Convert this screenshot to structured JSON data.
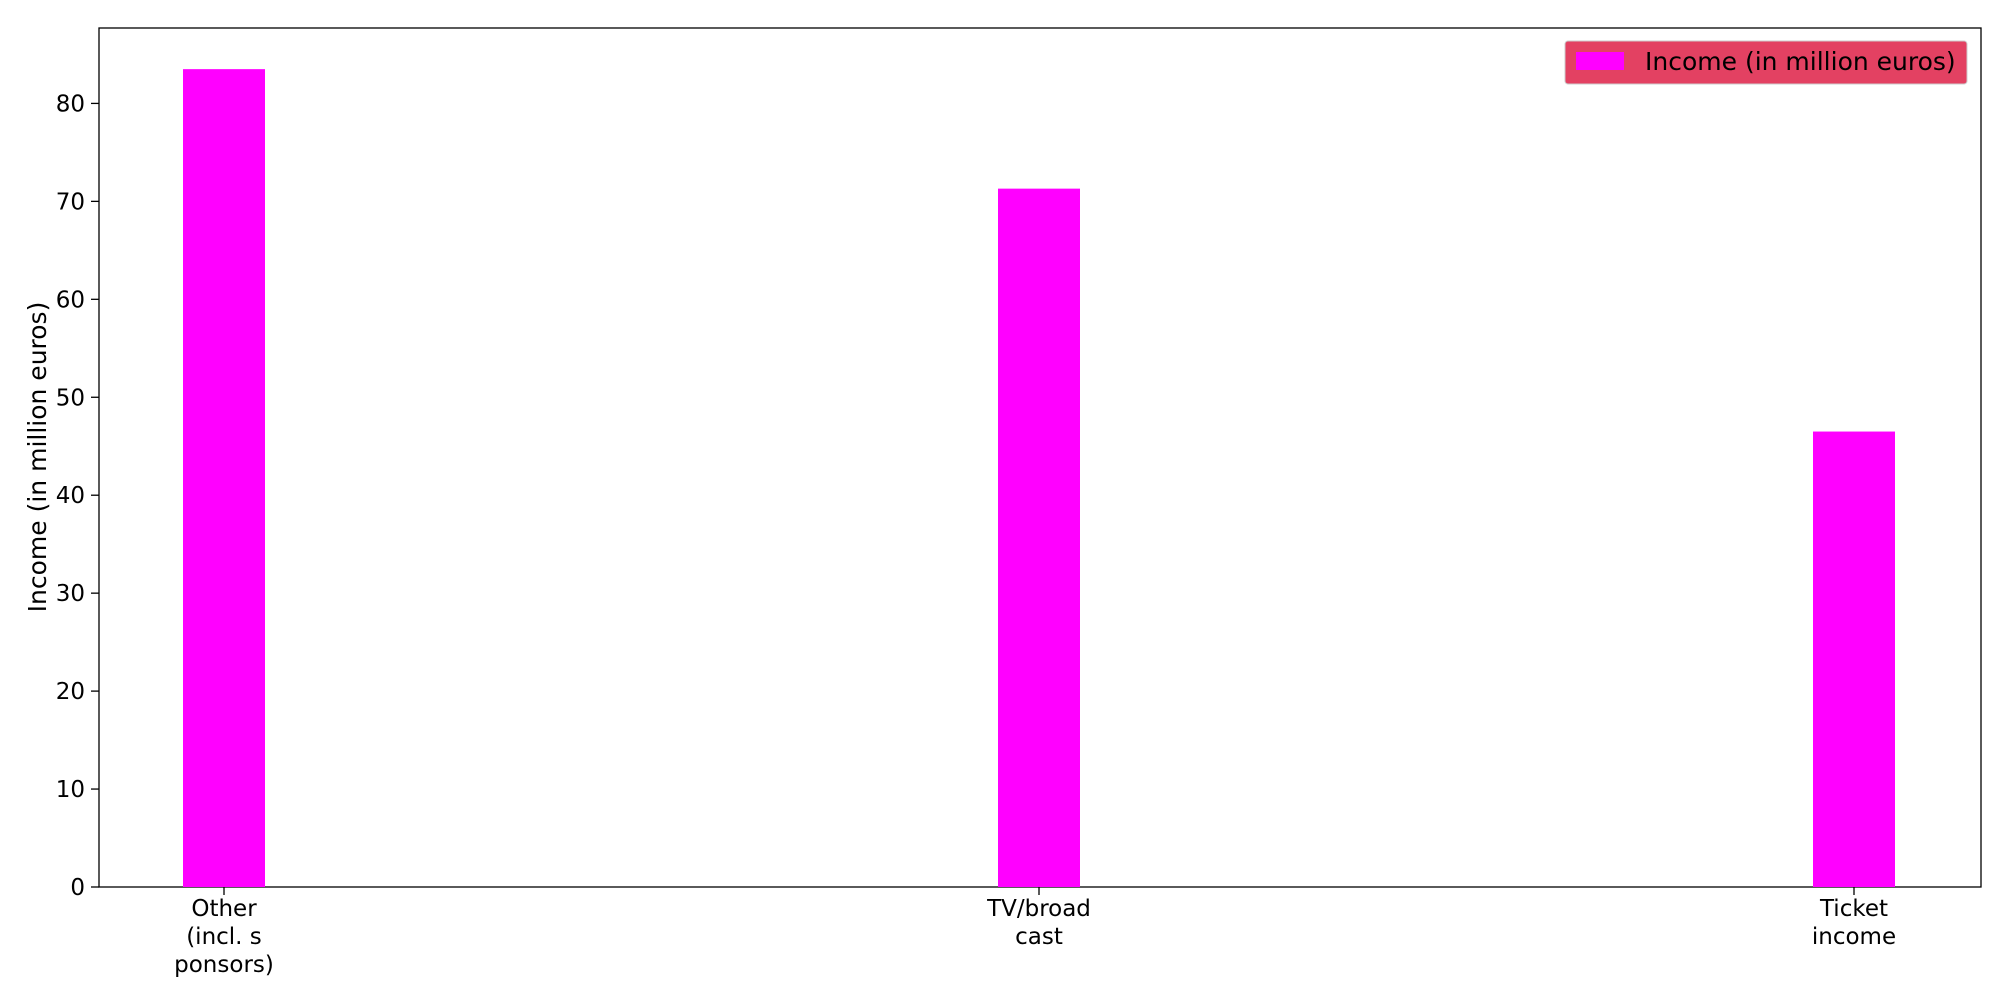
{
  "chart_data": {
    "type": "bar",
    "categories": [
      "Other\n(incl. s\nponsors)",
      "TV/broad\ncast",
      "Ticket\nincome"
    ],
    "series": [
      {
        "name": "Income (in million euros)",
        "values": [
          83.5,
          71.3,
          46.5
        ],
        "color": "#ff00ff"
      }
    ],
    "title": "",
    "xlabel": "",
    "ylabel": "Income (in million euros)",
    "ylim": [
      0,
      87.7
    ],
    "yticks": [
      0,
      10,
      20,
      30,
      40,
      50,
      60,
      70,
      80
    ],
    "grid": false,
    "legend": {
      "position": "top-right",
      "background": "#e34162"
    }
  }
}
